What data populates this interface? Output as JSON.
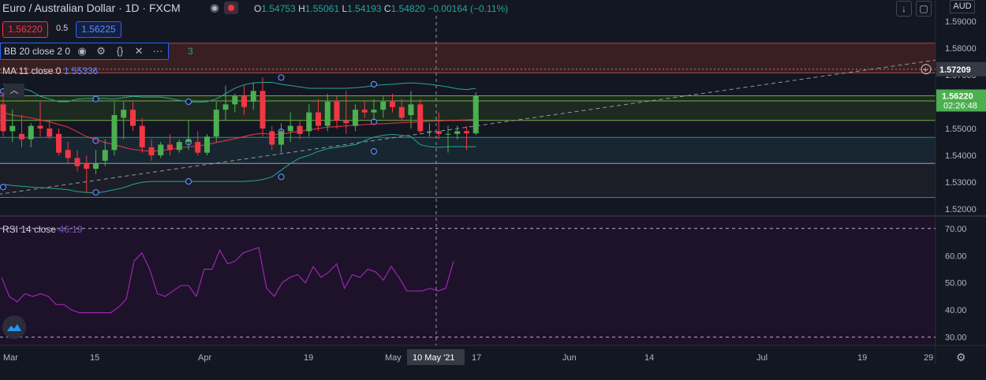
{
  "header": {
    "title": "Euro / Australian Dollar · 1D · FXCM",
    "ohlc": {
      "o_label": "O",
      "o": "1.54753",
      "h_label": "H",
      "h": "1.55061",
      "l_label": "L",
      "l": "1.54193",
      "c_label": "C",
      "c": "1.54820",
      "change": "−0.00164 (−0.11%)"
    }
  },
  "trade": {
    "sell": "1.56220",
    "spread": "0.5",
    "buy": "1.56225"
  },
  "indicators": {
    "bb_label": "BB 20 close 2 0",
    "bb_tail": "3",
    "ma_label": "MA 11 close 0",
    "ma_value": "1.55336",
    "rsi_label": "RSI 14 close",
    "rsi_value": "46.19"
  },
  "toolbar": {
    "currency": "AUD"
  },
  "colors": {
    "up": "#26a69a",
    "up_body": "#4caf50",
    "down": "#f23645",
    "bb": "#26a69a",
    "ma": "#f23645",
    "rsi": "#9c27b0",
    "trend": "#9598a1"
  },
  "icons": {
    "eye": "eye-icon",
    "settings": "gear-icon",
    "source": "braces-icon",
    "close": "close-icon",
    "more": "more-icon",
    "download": "download-arrow-icon",
    "fullscreen": "fullscreen-icon",
    "plus": "add-circle-icon",
    "collapse": "chevron-up-icon",
    "logo": "tradingview-logo-icon"
  },
  "chart_data": {
    "type": "candlestick",
    "title": "Euro / Australian Dollar · 1D · FXCM",
    "price_axis": {
      "ticks": [
        "1.59000",
        "1.58000",
        "1.57000",
        "1.56000",
        "1.55000",
        "1.54000",
        "1.53000",
        "1.52000"
      ],
      "range": [
        1.518,
        1.592
      ]
    },
    "price_labels": {
      "crosshair": "1.57209",
      "last": "1.56220",
      "countdown": "02:26:48"
    },
    "horizontal_levels": [
      1.5818,
      1.5707,
      1.5622,
      1.5603,
      1.553,
      1.5467,
      1.537,
      1.5243
    ],
    "time_axis": {
      "ticks": [
        "Mar",
        "15",
        "Apr",
        "19",
        "May",
        "17",
        "Jun",
        "14",
        "Jul",
        "19",
        "29"
      ],
      "crosshair_label": "10 May '21"
    },
    "candles": [
      {
        "o": 1.559,
        "h": 1.564,
        "l": 1.547,
        "c": 1.549
      },
      {
        "o": 1.549,
        "h": 1.557,
        "l": 1.545,
        "c": 1.551
      },
      {
        "o": 1.548,
        "h": 1.555,
        "l": 1.543,
        "c": 1.546
      },
      {
        "o": 1.546,
        "h": 1.552,
        "l": 1.543,
        "c": 1.551
      },
      {
        "o": 1.551,
        "h": 1.56,
        "l": 1.547,
        "c": 1.55
      },
      {
        "o": 1.55,
        "h": 1.553,
        "l": 1.546,
        "c": 1.547
      },
      {
        "o": 1.548,
        "h": 1.55,
        "l": 1.54,
        "c": 1.541
      },
      {
        "o": 1.542,
        "h": 1.545,
        "l": 1.537,
        "c": 1.539
      },
      {
        "o": 1.539,
        "h": 1.542,
        "l": 1.534,
        "c": 1.536
      },
      {
        "o": 1.537,
        "h": 1.54,
        "l": 1.526,
        "c": 1.535
      },
      {
        "o": 1.535,
        "h": 1.542,
        "l": 1.533,
        "c": 1.537
      },
      {
        "o": 1.538,
        "h": 1.546,
        "l": 1.536,
        "c": 1.542
      },
      {
        "o": 1.542,
        "h": 1.56,
        "l": 1.54,
        "c": 1.555
      },
      {
        "o": 1.554,
        "h": 1.56,
        "l": 1.546,
        "c": 1.557
      },
      {
        "o": 1.557,
        "h": 1.56,
        "l": 1.549,
        "c": 1.551
      },
      {
        "o": 1.551,
        "h": 1.554,
        "l": 1.541,
        "c": 1.543
      },
      {
        "o": 1.543,
        "h": 1.546,
        "l": 1.538,
        "c": 1.54
      },
      {
        "o": 1.54,
        "h": 1.545,
        "l": 1.539,
        "c": 1.544
      },
      {
        "o": 1.544,
        "h": 1.548,
        "l": 1.54,
        "c": 1.542
      },
      {
        "o": 1.542,
        "h": 1.546,
        "l": 1.541,
        "c": 1.545
      },
      {
        "o": 1.545,
        "h": 1.553,
        "l": 1.542,
        "c": 1.546
      },
      {
        "o": 1.545,
        "h": 1.549,
        "l": 1.54,
        "c": 1.541
      },
      {
        "o": 1.541,
        "h": 1.548,
        "l": 1.54,
        "c": 1.547
      },
      {
        "o": 1.547,
        "h": 1.56,
        "l": 1.545,
        "c": 1.557
      },
      {
        "o": 1.557,
        "h": 1.566,
        "l": 1.553,
        "c": 1.559
      },
      {
        "o": 1.559,
        "h": 1.563,
        "l": 1.556,
        "c": 1.562
      },
      {
        "o": 1.562,
        "h": 1.566,
        "l": 1.555,
        "c": 1.558
      },
      {
        "o": 1.56,
        "h": 1.567,
        "l": 1.557,
        "c": 1.564
      },
      {
        "o": 1.564,
        "h": 1.569,
        "l": 1.547,
        "c": 1.55
      },
      {
        "o": 1.549,
        "h": 1.551,
        "l": 1.542,
        "c": 1.544
      },
      {
        "o": 1.544,
        "h": 1.552,
        "l": 1.541,
        "c": 1.549
      },
      {
        "o": 1.549,
        "h": 1.556,
        "l": 1.545,
        "c": 1.551
      },
      {
        "o": 1.551,
        "h": 1.553,
        "l": 1.546,
        "c": 1.548
      },
      {
        "o": 1.549,
        "h": 1.559,
        "l": 1.547,
        "c": 1.556
      },
      {
        "o": 1.556,
        "h": 1.561,
        "l": 1.549,
        "c": 1.551
      },
      {
        "o": 1.551,
        "h": 1.563,
        "l": 1.549,
        "c": 1.56
      },
      {
        "o": 1.56,
        "h": 1.562,
        "l": 1.55,
        "c": 1.553
      },
      {
        "o": 1.553,
        "h": 1.564,
        "l": 1.548,
        "c": 1.552
      },
      {
        "o": 1.551,
        "h": 1.559,
        "l": 1.549,
        "c": 1.557
      },
      {
        "o": 1.557,
        "h": 1.56,
        "l": 1.554,
        "c": 1.556
      },
      {
        "o": 1.556,
        "h": 1.561,
        "l": 1.553,
        "c": 1.557
      },
      {
        "o": 1.557,
        "h": 1.562,
        "l": 1.554,
        "c": 1.56
      },
      {
        "o": 1.56,
        "h": 1.563,
        "l": 1.556,
        "c": 1.558
      },
      {
        "o": 1.558,
        "h": 1.561,
        "l": 1.553,
        "c": 1.554
      },
      {
        "o": 1.555,
        "h": 1.564,
        "l": 1.55,
        "c": 1.559
      },
      {
        "o": 1.559,
        "h": 1.561,
        "l": 1.548,
        "c": 1.549
      },
      {
        "o": 1.549,
        "h": 1.552,
        "l": 1.547,
        "c": 1.549
      },
      {
        "o": 1.549,
        "h": 1.556,
        "l": 1.546,
        "c": 1.548
      },
      {
        "o": 1.548,
        "h": 1.551,
        "l": 1.541,
        "c": 1.548
      },
      {
        "o": 1.548,
        "h": 1.551,
        "l": 1.546,
        "c": 1.549
      },
      {
        "o": 1.549,
        "h": 1.551,
        "l": 1.542,
        "c": 1.5482
      },
      {
        "o": 1.5482,
        "h": 1.5635,
        "l": 1.5475,
        "c": 1.5622
      }
    ],
    "bb_upper": [
      1.5665,
      1.566,
      1.565,
      1.564,
      1.562,
      1.561,
      1.56,
      1.56,
      1.561,
      1.5612,
      1.5612,
      1.5612,
      1.561,
      1.5615,
      1.562,
      1.5617,
      1.5617,
      1.5617,
      1.5612,
      1.5605,
      1.56,
      1.5598,
      1.56,
      1.561,
      1.563,
      1.565,
      1.5663,
      1.567,
      1.5672,
      1.5672,
      1.5665,
      1.566,
      1.5655,
      1.565,
      1.565,
      1.565,
      1.565,
      1.565,
      1.5652,
      1.5655,
      1.566,
      1.5663,
      1.5665,
      1.5668,
      1.567,
      1.5668,
      1.5665,
      1.566,
      1.5655,
      1.5648,
      1.5645,
      1.565
    ],
    "bb_lower": [
      1.5292,
      1.5288,
      1.5285,
      1.5282,
      1.528,
      1.5278,
      1.5275,
      1.5272,
      1.5265,
      1.5262,
      1.526,
      1.5265,
      1.5272,
      1.528,
      1.5292,
      1.53,
      1.5303,
      1.5303,
      1.5303,
      1.5303,
      1.5303,
      1.5303,
      1.5303,
      1.5303,
      1.5303,
      1.5303,
      1.5303,
      1.5305,
      1.531,
      1.532,
      1.5345,
      1.537,
      1.539,
      1.54,
      1.5415,
      1.5425,
      1.543,
      1.5435,
      1.544,
      1.5455,
      1.5468,
      1.5475,
      1.5478,
      1.5475,
      1.547,
      1.544,
      1.5432,
      1.543,
      1.5432,
      1.5433,
      1.5432,
      1.5432
    ],
    "ma": [
      1.556,
      1.555,
      1.5545,
      1.554,
      1.5532,
      1.5525,
      1.5515,
      1.5505,
      1.5488,
      1.547,
      1.5458,
      1.5448,
      1.544,
      1.543,
      1.5422,
      1.5418,
      1.5415,
      1.5418,
      1.5422,
      1.5428,
      1.5432,
      1.5435,
      1.544,
      1.5448,
      1.5455,
      1.5462,
      1.547,
      1.5478,
      1.5482,
      1.5478,
      1.5478,
      1.5485,
      1.549,
      1.5495,
      1.55,
      1.5505,
      1.5507,
      1.551,
      1.5512,
      1.5515,
      1.5517,
      1.5518,
      1.552,
      1.5522,
      1.5523,
      1.5525,
      1.5527,
      1.5528,
      1.553,
      1.5531,
      1.5532,
      1.5534
    ],
    "rsi": {
      "levels": {
        "upper": 70,
        "lower": 30
      },
      "ticks": [
        "70.00",
        "60.00",
        "50.00",
        "40.00",
        "30.00"
      ],
      "range": [
        27,
        74
      ],
      "values": [
        52,
        45,
        43,
        46,
        45,
        46,
        45,
        42,
        42,
        40,
        39,
        39,
        39,
        39,
        39,
        41,
        44,
        58,
        61,
        55,
        46,
        45,
        47,
        49,
        49,
        45,
        55,
        55,
        62,
        57,
        58,
        61,
        62,
        63,
        48,
        45,
        50,
        52,
        53,
        50,
        56,
        52,
        54,
        57,
        48,
        53,
        52,
        55,
        54,
        51,
        56,
        52,
        47,
        47,
        47,
        48,
        47,
        48,
        58
      ]
    }
  }
}
